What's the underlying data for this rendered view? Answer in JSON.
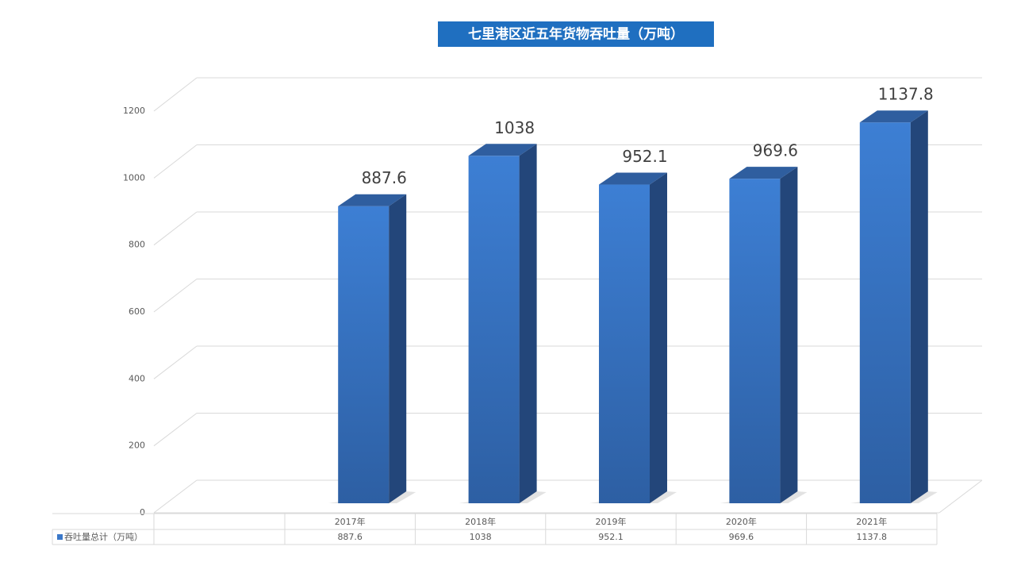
{
  "chart_data": {
    "type": "bar",
    "title": "七里港区近五年货物吞吐量（万吨）",
    "categories": [
      "2017年",
      "2018年",
      "2019年",
      "2020年",
      "2021年"
    ],
    "series": [
      {
        "name": "吞吐量总计（万吨）",
        "color": "#3a78c9",
        "values": [
          887.6,
          1038,
          952.1,
          969.6,
          1137.8
        ]
      }
    ],
    "ylim": [
      0,
      1200
    ],
    "yticks": [
      0,
      200,
      400,
      600,
      800,
      1000,
      1200
    ],
    "grid": true
  }
}
